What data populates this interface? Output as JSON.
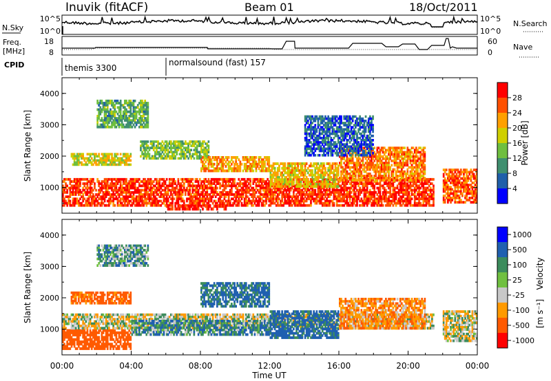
{
  "header": {
    "station": "Inuvik (fitACF)",
    "beam": "Beam 01",
    "date": "18/Oct/2011"
  },
  "noise_panel": {
    "left_label": "N.Sky",
    "left_ticks": [
      "10^5",
      "10^0"
    ],
    "right_label": "N.Search",
    "right_ticks": [
      "10^5",
      "10^0"
    ]
  },
  "freq_panel": {
    "left_label_1": "Freq.",
    "left_label_2": "[MHz]",
    "left_ticks": [
      "18",
      "8"
    ],
    "right_label": "Nave",
    "right_ticks": [
      "60",
      "0"
    ]
  },
  "cpid_panel": {
    "label": "CPID",
    "modes": [
      {
        "name": "themis 3300"
      },
      {
        "name": "normalsound (fast) 157"
      }
    ]
  },
  "colors": {
    "power_scale": [
      "#0000ff",
      "#1f5faa",
      "#3f8f6f",
      "#6fbf3f",
      "#cfcf00",
      "#ffa000",
      "#ff5000",
      "#ff0000"
    ],
    "velocity_scale": [
      "#0000ff",
      "#2060b0",
      "#3c8c5c",
      "#70c040",
      "#c8c8c8",
      "#ff9a00",
      "#ff5a00",
      "#ff0000"
    ]
  },
  "chart_data": [
    {
      "type": "heatmap",
      "name": "power",
      "xlabel": "Time UT",
      "ylabel": "Slant Range [km]",
      "colorbar_label": "Power [dB]",
      "colorbar_ticks": [
        "28",
        "24",
        "20",
        "16",
        "12",
        "8",
        "4"
      ],
      "x_ticks": [
        "00:00",
        "04:00",
        "08:00",
        "12:00",
        "16:00",
        "20:00",
        "00:00"
      ],
      "y_ticks": [
        "1000",
        "2000",
        "3000",
        "4000"
      ],
      "xlim": [
        0,
        24
      ],
      "ylim": [
        180,
        4500
      ],
      "clim": [
        0,
        32
      ],
      "bands": [
        {
          "t": [
            0.0,
            21.5
          ],
          "r": [
            400,
            1300
          ],
          "v": 28
        },
        {
          "t": [
            0.5,
            4.0
          ],
          "r": [
            1700,
            2100
          ],
          "v": 18
        },
        {
          "t": [
            4.5,
            8.5
          ],
          "r": [
            1900,
            2500
          ],
          "v": 14
        },
        {
          "t": [
            6.0,
            9.5
          ],
          "r": [
            280,
            450
          ],
          "v": 30
        },
        {
          "t": [
            8.0,
            12.0
          ],
          "r": [
            1500,
            2000
          ],
          "v": 22
        },
        {
          "t": [
            12.0,
            16.0
          ],
          "r": [
            1000,
            1800
          ],
          "v": 20
        },
        {
          "t": [
            16.0,
            21.0
          ],
          "r": [
            1200,
            2300
          ],
          "v": 24
        },
        {
          "t": [
            2.0,
            5.0
          ],
          "r": [
            2900,
            3800
          ],
          "v": 12
        },
        {
          "t": [
            22.0,
            24.0
          ],
          "r": [
            500,
            1600
          ],
          "v": 26
        },
        {
          "t": [
            14.0,
            18.0
          ],
          "r": [
            2000,
            3300
          ],
          "v": 6
        }
      ]
    },
    {
      "type": "heatmap",
      "name": "velocity",
      "xlabel": "Time UT",
      "ylabel": "Slant Range [km]",
      "colorbar_label": "Velocity",
      "colorbar_unit": "[m s⁻¹]",
      "colorbar_ticks": [
        "1000",
        "500",
        "100",
        "25",
        "-25",
        "-100",
        "-500",
        "-1000"
      ],
      "x_ticks": [
        "00:00",
        "04:00",
        "08:00",
        "12:00",
        "16:00",
        "20:00",
        "00:00"
      ],
      "y_ticks": [
        "1000",
        "2000",
        "3000",
        "4000"
      ],
      "xlim": [
        0,
        24
      ],
      "ylim": [
        180,
        4500
      ],
      "bands": [
        {
          "t": [
            0.0,
            4.0
          ],
          "r": [
            350,
            1000
          ],
          "v": -300
        },
        {
          "t": [
            0.0,
            21.5
          ],
          "r": [
            1000,
            1500
          ],
          "v": 0
        },
        {
          "t": [
            4.0,
            12.0
          ],
          "r": [
            800,
            1300
          ],
          "v": 80
        },
        {
          "t": [
            8.0,
            12.0
          ],
          "r": [
            1700,
            2500
          ],
          "v": 120
        },
        {
          "t": [
            12.0,
            16.0
          ],
          "r": [
            700,
            1600
          ],
          "v": 150
        },
        {
          "t": [
            16.0,
            21.0
          ],
          "r": [
            1000,
            2000
          ],
          "v": -80
        },
        {
          "t": [
            0.5,
            4.0
          ],
          "r": [
            1800,
            2200
          ],
          "v": -150
        },
        {
          "t": [
            2.0,
            5.0
          ],
          "r": [
            3000,
            3700
          ],
          "v": 60
        },
        {
          "t": [
            22.0,
            24.0
          ],
          "r": [
            600,
            1600
          ],
          "v": 0
        }
      ]
    }
  ]
}
